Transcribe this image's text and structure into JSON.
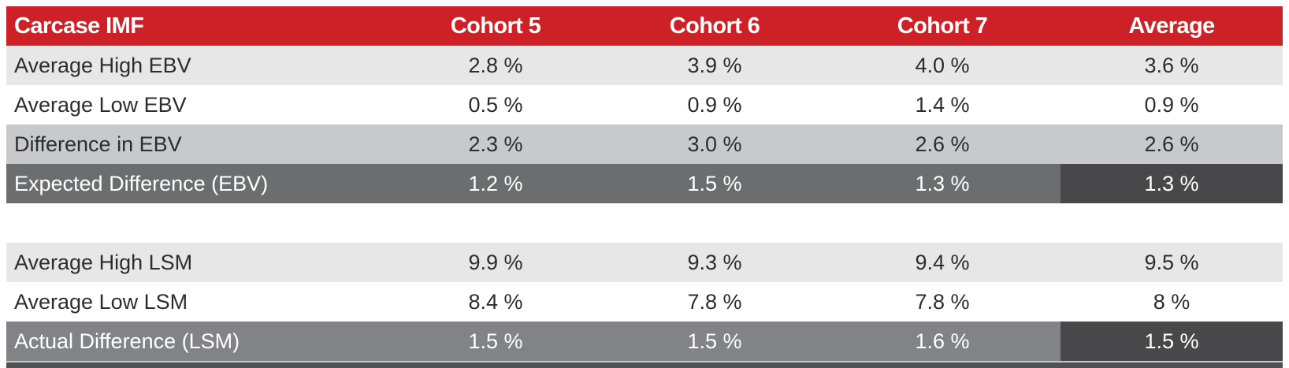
{
  "colors": {
    "header_bg": "#ce2127",
    "header_text": "#ffffff",
    "row_light": "#e7e7e8",
    "row_white": "#ffffff",
    "row_gray": "#c8c9cb",
    "row_dark_ebv": "#6c6d6f",
    "row_dark_lsm": "#828387",
    "avg_cell_dark": "#48484a",
    "bottom_bar": "#4f5052",
    "separator": "#c6c7c9",
    "body_text": "#2d2d2e"
  },
  "table": {
    "title": "Carcase IMF",
    "columns": [
      "Cohort 5",
      "Cohort 6",
      "Cohort 7",
      "Average"
    ],
    "sections": [
      {
        "name": "EBV",
        "rows": [
          {
            "label": "Average High EBV",
            "values": [
              "2.8 %",
              "3.9 %",
              "4.0 %",
              "3.6 %"
            ],
            "style": "light"
          },
          {
            "label": "Average Low EBV",
            "values": [
              "0.5 %",
              "0.9 %",
              "1.4 %",
              "0.9 %"
            ],
            "style": "white"
          },
          {
            "label": "Difference in EBV",
            "values": [
              "2.3 %",
              "3.0 %",
              "2.6 %",
              "2.6 %"
            ],
            "style": "gray"
          },
          {
            "label": "Expected Difference (EBV)",
            "values": [
              "1.2 %",
              "1.5 %",
              "1.3 %",
              "1.3 %"
            ],
            "style": "dark-ebv",
            "average_highlight": true
          }
        ]
      },
      {
        "name": "LSM",
        "rows": [
          {
            "label": "Average High LSM",
            "values": [
              "9.9 %",
              "9.3 %",
              "9.4 %",
              "9.5 %"
            ],
            "style": "light"
          },
          {
            "label": "Average Low LSM",
            "values": [
              "8.4 %",
              "7.8 %",
              "7.8 %",
              "8 %"
            ],
            "style": "white"
          },
          {
            "label": "Actual Difference (LSM)",
            "values": [
              "1.5 %",
              "1.5 %",
              "1.6 %",
              "1.5 %"
            ],
            "style": "dark-lsm",
            "average_highlight": true
          }
        ]
      }
    ]
  }
}
